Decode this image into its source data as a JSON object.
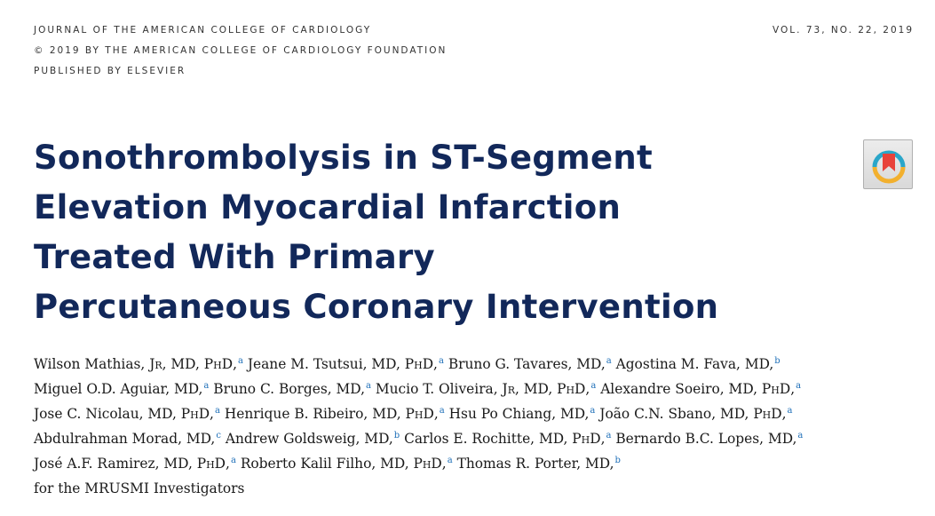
{
  "journal": {
    "line1": "JOURNAL OF THE AMERICAN COLLEGE OF CARDIOLOGY",
    "line2": "© 2019 BY THE AMERICAN COLLEGE OF CARDIOLOGY FOUNDATION",
    "line3": "PUBLISHED BY ELSEVIER",
    "volume": "VOL. 73, NO. 22, 2019"
  },
  "title": {
    "lines": [
      "Sonothrombolysis in ST-Segment",
      "Elevation Myocardial Infarction",
      "Treated With Primary",
      "Percutaneous Coronary Intervention"
    ]
  },
  "badge": {
    "icon": "check-for-updates-icon",
    "colors": [
      "#e8423a",
      "#f2b02e",
      "#2aa6c9"
    ]
  },
  "authors": {
    "suffix_jr": "Jr",
    "suffix_phd": "PhD",
    "list": [
      {
        "name": "Wilson Mathias, ",
        "degrees": ", MD, ",
        "aff": "a"
      },
      {
        "name": "Jeane M. Tsutsui, MD, ",
        "aff": "a"
      },
      {
        "name": "Bruno G. Tavares, MD,",
        "aff": "a"
      },
      {
        "name": "Agostina M. Fava, MD,",
        "aff": "b"
      },
      {
        "name": "Miguel O.D. Aguiar, MD,",
        "aff": "a"
      },
      {
        "name": "Bruno C. Borges, MD,",
        "aff": "a"
      },
      {
        "name": "Mucio T. Oliveira, ",
        "degrees": ", MD, ",
        "aff": "a"
      },
      {
        "name": "Alexandre Soeiro, MD, ",
        "aff": "a"
      },
      {
        "name": "Jose C. Nicolau, MD, ",
        "aff": "a"
      },
      {
        "name": "Henrique B. Ribeiro, MD, ",
        "aff": "a"
      },
      {
        "name": "Hsu Po Chiang, MD,",
        "aff": "a"
      },
      {
        "name": "João C.N. Sbano, MD, ",
        "aff": "a"
      },
      {
        "name": "Abdulrahman Morad, MD,",
        "aff": "c"
      },
      {
        "name": "Andrew Goldsweig, MD,",
        "aff": "b"
      },
      {
        "name": "Carlos E. Rochitte, MD, ",
        "aff": "a"
      },
      {
        "name": "Bernardo B.C. Lopes, MD,",
        "aff": "a"
      },
      {
        "name": "José A.F. Ramirez, MD, ",
        "aff": "a"
      },
      {
        "name": "Roberto Kalil Filho, MD, ",
        "aff": "a"
      },
      {
        "name": "Thomas R. Porter, MD,",
        "aff": "b"
      }
    ],
    "group": "for the MRUSMI Investigators"
  }
}
